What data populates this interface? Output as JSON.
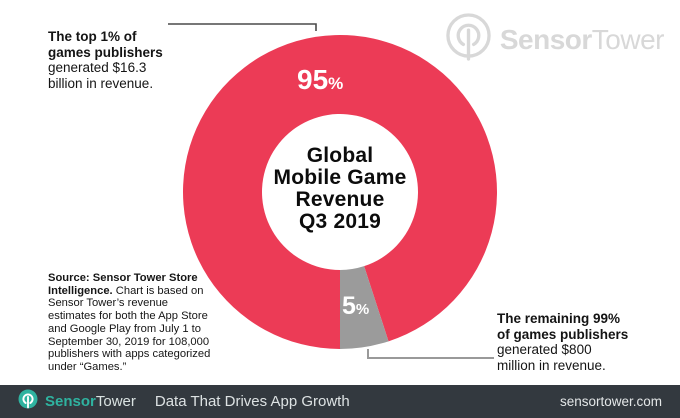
{
  "header": {
    "logo": {
      "brand_bold": "Sensor",
      "brand_light": "Tower",
      "color": "#d8d8d8"
    }
  },
  "chart_data": {
    "type": "pie",
    "donut": true,
    "title": "Global Mobile Game Revenue Q3 2019",
    "center_title_lines": [
      "Global",
      "Mobile Game",
      "Revenue",
      "Q3 2019"
    ],
    "start_angle_deg": 288,
    "direction": "ccw",
    "legend": "none",
    "segments": [
      {
        "name": "Top 1% of games publishers",
        "value_pct": 95,
        "label": "95",
        "unit": "%",
        "color": "#ec3b56"
      },
      {
        "name": "Remaining 99% of games publishers",
        "value_pct": 5,
        "label": "5",
        "unit": "%",
        "color": "#9b9b9b"
      }
    ]
  },
  "annotations": {
    "top_left": {
      "bold_lines": [
        "The top 1% of",
        "games publishers"
      ],
      "regular_lines": [
        "generated $16.3",
        "billion in revenue."
      ]
    },
    "bottom_right": {
      "bold_lines": [
        "The remaining 99%",
        "of games publishers"
      ],
      "regular_lines": [
        "generated $800",
        "million in revenue."
      ]
    },
    "callout_color_dark": "#4a4a4a",
    "callout_color_gray": "#999999"
  },
  "source_note": {
    "bold": "Source: Sensor Tower Store Intelligence.",
    "regular": " Chart is based on Sensor Tower’s revenue estimates for both the App Store and Google Play from July 1 to September 30, 2019 for 108,000 publishers with apps categorized under “Games.”"
  },
  "footer": {
    "background": "#33393f",
    "brand_bold": "Sensor",
    "brand_light": "Tower",
    "brand_color": "#2fb3a0",
    "tagline": "Data That Drives App Growth",
    "website": "sensortower.com"
  }
}
